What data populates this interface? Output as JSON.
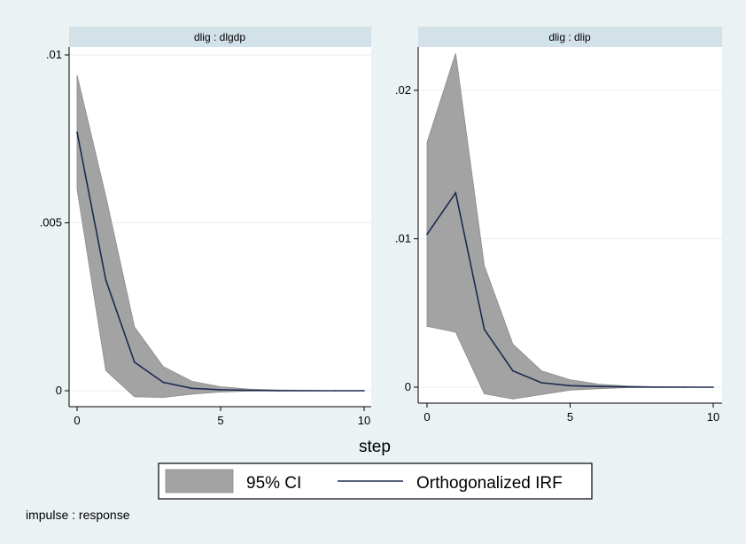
{
  "chart_data": [
    {
      "type": "area",
      "title": "dlig : dlgdp",
      "xlabel": "step",
      "ylabel": "",
      "xlim": [
        0,
        10
      ],
      "ylim": [
        0,
        0.01
      ],
      "xticks": [
        0,
        5,
        10
      ],
      "yticks": [
        0,
        0.005,
        0.01
      ],
      "ytick_labels": [
        "0",
        ".005",
        ".01"
      ],
      "grid": true,
      "x": [
        0,
        1,
        2,
        3,
        4,
        5,
        6,
        7,
        8,
        9,
        10
      ],
      "series": [
        {
          "name": "95% CI",
          "lower": [
            0.006,
            0.0006,
            -0.00018,
            -0.0002,
            -0.0001,
            -4e-05,
            -1e-05,
            0,
            0,
            0,
            0
          ],
          "upper": [
            0.0094,
            0.0058,
            0.0019,
            0.00072,
            0.00028,
            0.00012,
            5e-05,
            2e-05,
            1e-05,
            0,
            0
          ]
        },
        {
          "name": "Orthogonalized IRF",
          "values": [
            0.0077,
            0.0033,
            0.00085,
            0.00025,
            7e-05,
            3e-05,
            1e-05,
            0,
            0,
            0,
            0
          ]
        }
      ]
    },
    {
      "type": "area",
      "title": "dlig : dlip",
      "xlabel": "step",
      "ylabel": "",
      "xlim": [
        0,
        10
      ],
      "ylim": [
        0,
        0.02
      ],
      "xticks": [
        0,
        5,
        10
      ],
      "yticks": [
        0,
        0.01,
        0.02
      ],
      "ytick_labels": [
        "0",
        ".01",
        ".02"
      ],
      "grid": true,
      "x": [
        0,
        1,
        2,
        3,
        4,
        5,
        6,
        7,
        8,
        9,
        10
      ],
      "series": [
        {
          "name": "95% CI",
          "lower": [
            0.0041,
            0.0037,
            -0.00045,
            -0.0008,
            -0.0005,
            -0.0002,
            -0.0001,
            -3e-05,
            0,
            0,
            0
          ],
          "upper": [
            0.0165,
            0.0225,
            0.0082,
            0.0029,
            0.0011,
            0.0005,
            0.0002,
            8e-05,
            3e-05,
            1e-05,
            0
          ]
        },
        {
          "name": "Orthogonalized IRF",
          "values": [
            0.0103,
            0.0131,
            0.0039,
            0.0011,
            0.0003,
            0.0001,
            5e-05,
            2e-05,
            0,
            0,
            0
          ]
        }
      ]
    }
  ],
  "common": {
    "xaxis_title": "step",
    "legend": {
      "position": "bottom",
      "ci_label": "95% CI",
      "irf_label": "Orthogonalized IRF"
    },
    "note": "impulse : response"
  },
  "colors": {
    "background": "#eaf2f3",
    "panel_header": "#d3e1e8",
    "plot_bg": "#ffffff",
    "grid": "#e9eef0",
    "ci_fill": "#a3a3a3",
    "ci_edge": "#8b8b8b",
    "irf_line": "#1a2b50",
    "text": "#000000"
  }
}
